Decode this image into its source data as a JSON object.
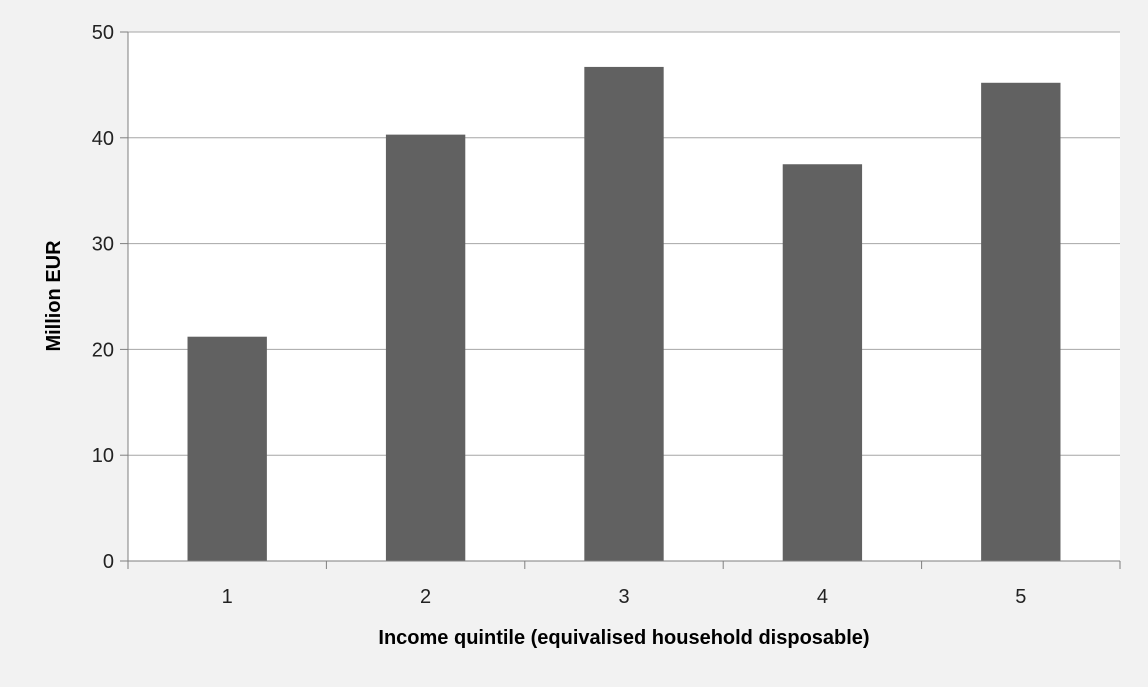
{
  "chart_data": {
    "type": "bar",
    "categories": [
      "1",
      "2",
      "3",
      "4",
      "5"
    ],
    "values": [
      21.2,
      40.3,
      46.7,
      37.5,
      45.2
    ],
    "title": "",
    "xlabel": "Income quintile (equivalised household disposable)",
    "ylabel": "Million EUR",
    "ylim": [
      0,
      50
    ],
    "yticks": [
      0,
      10,
      20,
      30,
      40,
      50
    ],
    "grid": true,
    "legend": "none",
    "bar_color": "#616161",
    "background_color": "#f2f2f2",
    "plot_background_color": "#ffffff",
    "gridline_color": "#a6a6a6"
  }
}
